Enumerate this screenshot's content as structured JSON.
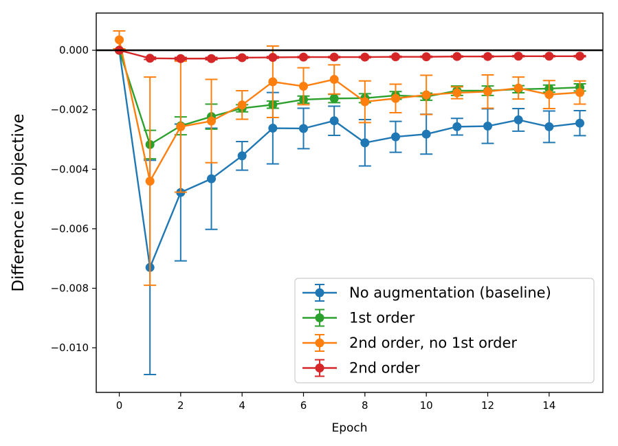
{
  "chart_data": {
    "type": "line",
    "title": "",
    "xlabel": "Epoch",
    "ylabel": "Difference in objective",
    "xlim": [
      -0.75,
      15.75
    ],
    "ylim": [
      -0.0115,
      0.00125
    ],
    "xticks": [
      0,
      2,
      4,
      6,
      8,
      10,
      12,
      14
    ],
    "xtick_labels": [
      "0",
      "2",
      "4",
      "6",
      "8",
      "10",
      "12",
      "14"
    ],
    "yticks": [
      0.0,
      -0.002,
      -0.004,
      -0.006,
      -0.008,
      -0.01
    ],
    "ytick_labels": [
      "0.000",
      "−0.002",
      "−0.004",
      "−0.006",
      "−0.008",
      "−0.010"
    ],
    "reference_line_y": 0.0,
    "legend_position": "lower-right",
    "grid": false,
    "x": [
      0,
      1,
      2,
      3,
      4,
      5,
      6,
      7,
      8,
      9,
      10,
      11,
      12,
      13,
      14,
      15
    ],
    "series": [
      {
        "name": "No augmentation (baseline)",
        "color": "#1f77b4",
        "values": [
          0.0,
          -0.0073,
          -0.00478,
          -0.00432,
          -0.00355,
          -0.00262,
          -0.00263,
          -0.00237,
          -0.00311,
          -0.00291,
          -0.00282,
          -0.00257,
          -0.00255,
          -0.00234,
          -0.00257,
          -0.00245
        ],
        "errors": [
          0.0,
          0.0036,
          0.0023,
          0.0017,
          0.00048,
          0.0012,
          0.00068,
          0.00049,
          0.00078,
          0.00052,
          0.00067,
          0.00028,
          0.00058,
          0.00038,
          0.00053,
          0.00042
        ]
      },
      {
        "name": "1st order",
        "color": "#2ca02c",
        "values": [
          0.0,
          -0.00317,
          -0.00254,
          -0.00223,
          -0.00195,
          -0.00183,
          -0.00166,
          -0.00162,
          -0.00161,
          -0.00152,
          -0.00156,
          -0.00136,
          -0.00136,
          -0.00131,
          -0.00129,
          -0.00125
        ],
        "errors": [
          0.0,
          0.00048,
          0.0003,
          0.00042,
          0.00012,
          0.00012,
          0.00012,
          0.00014,
          0.00015,
          0.00013,
          0.00012,
          0.00016,
          0.00016,
          0.00012,
          0.00012,
          0.00012
        ]
      },
      {
        "name": "2nd order, no 1st order",
        "color": "#ff7f0e",
        "values": [
          0.00035,
          -0.0044,
          -0.00257,
          -0.00238,
          -0.00184,
          -0.00106,
          -0.00121,
          -0.00098,
          -0.00173,
          -0.00162,
          -0.0015,
          -0.00143,
          -0.00139,
          -0.00127,
          -0.00149,
          -0.00142
        ],
        "errors": [
          0.0003,
          0.0035,
          0.0022,
          0.0014,
          0.00048,
          0.0012,
          0.00062,
          0.00049,
          0.0007,
          0.00048,
          0.00066,
          0.0002,
          0.00056,
          0.00037,
          0.00047,
          0.00039
        ]
      },
      {
        "name": "2nd order",
        "color": "#d62728",
        "values": [
          0.0,
          -0.00027,
          -0.00028,
          -0.00028,
          -0.00025,
          -0.00024,
          -0.00023,
          -0.00023,
          -0.00023,
          -0.00022,
          -0.00022,
          -0.00021,
          -0.00021,
          -0.0002,
          -0.0002,
          -0.0002
        ],
        "errors": [
          0.0,
          4e-05,
          4e-05,
          4e-05,
          3e-05,
          3e-05,
          2e-05,
          2e-05,
          2e-05,
          2e-05,
          2e-05,
          2e-05,
          2e-05,
          2e-05,
          2e-05,
          2e-05
        ]
      }
    ]
  }
}
